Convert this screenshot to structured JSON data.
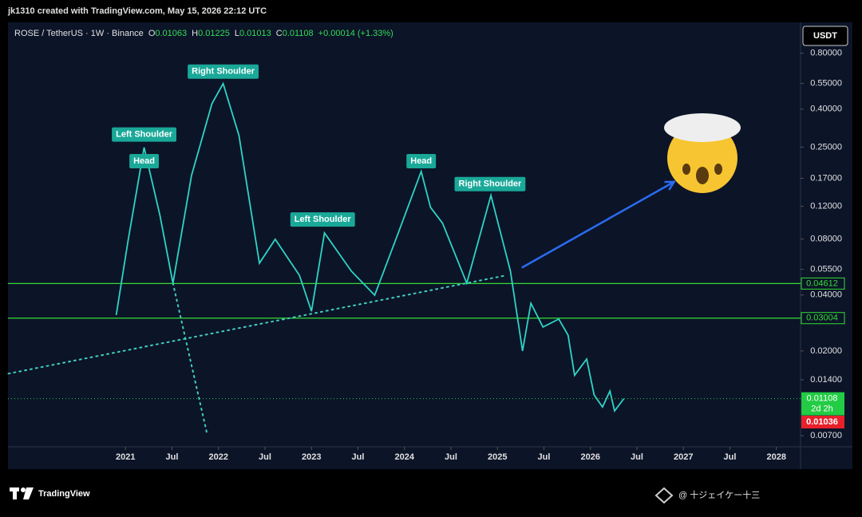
{
  "header": {
    "credit": "jk1310 created with TradingView.com, May 15, 2026 22:12 UTC"
  },
  "chart_data": {
    "type": "line",
    "symbol": "ROSE / TetherUS · 1W · Binance",
    "ohlc": [
      {
        "name": "O",
        "value": "0.01063"
      },
      {
        "name": "H",
        "value": "0.01225"
      },
      {
        "name": "L",
        "value": "0.01013"
      },
      {
        "name": "C",
        "value": "0.01108"
      }
    ],
    "change": "+0.00014 (+1.33%)",
    "currency": "USDT",
    "log_scale": true,
    "xlim": [
      2019.65,
      2028.26
    ],
    "ylim": [
      0.0061,
      1.15
    ],
    "xticks": [
      {
        "value": 2021,
        "label": "2021"
      },
      {
        "value": 2021.5,
        "label": "Jul"
      },
      {
        "value": 2022,
        "label": "2022"
      },
      {
        "value": 2022.5,
        "label": "Jul"
      },
      {
        "value": 2023,
        "label": "2023"
      },
      {
        "value": 2023.5,
        "label": "Jul"
      },
      {
        "value": 2024,
        "label": "2024"
      },
      {
        "value": 2024.5,
        "label": "Jul"
      },
      {
        "value": 2025,
        "label": "2025"
      },
      {
        "value": 2025.5,
        "label": "Jul"
      },
      {
        "value": 2026,
        "label": "2026"
      },
      {
        "value": 2026.5,
        "label": "Jul"
      },
      {
        "value": 2027,
        "label": "2027"
      },
      {
        "value": 2027.5,
        "label": "Jul"
      },
      {
        "value": 2028,
        "label": "2028"
      }
    ],
    "yticks": [
      {
        "value": 0.8,
        "label": "0.80000"
      },
      {
        "value": 0.55,
        "label": "0.55000"
      },
      {
        "value": 0.4,
        "label": "0.40000"
      },
      {
        "value": 0.25,
        "label": "0.25000"
      },
      {
        "value": 0.17,
        "label": "0.17000"
      },
      {
        "value": 0.12,
        "label": "0.12000"
      },
      {
        "value": 0.08,
        "label": "0.08000"
      },
      {
        "value": 0.055,
        "label": "0.05500"
      },
      {
        "value": 0.04,
        "label": "0.04000"
      },
      {
        "value": 0.02,
        "label": "0.02000"
      },
      {
        "value": 0.014,
        "label": "0.01400"
      },
      {
        "value": 0.007,
        "label": "0.00700"
      }
    ],
    "series": [
      {
        "color": "#2fd4c4",
        "x": [
          2020.9,
          2021.03,
          2021.2,
          2021.37,
          2021.51,
          2021.71,
          2021.93,
          2022.05,
          2022.22,
          2022.44,
          2022.61,
          2022.87,
          2023.0,
          2023.14,
          2023.43,
          2023.68,
          2023.94,
          2024.18,
          2024.28,
          2024.41,
          2024.67,
          2024.93,
          2025.14,
          2025.27,
          2025.36,
          2025.49,
          2025.66,
          2025.76,
          2025.83,
          2025.96,
          2026.04,
          2026.13,
          2026.21,
          2026.26,
          2026.36
        ],
        "values": [
          0.0312,
          0.0798,
          0.249,
          0.1074,
          0.0463,
          0.176,
          0.429,
          0.549,
          0.289,
          0.0593,
          0.0798,
          0.0511,
          0.0327,
          0.0863,
          0.0537,
          0.0399,
          0.0881,
          0.185,
          0.1186,
          0.0973,
          0.0463,
          0.1375,
          0.0537,
          0.02,
          0.0361,
          0.0269,
          0.0297,
          0.0243,
          0.0148,
          0.0181,
          0.0116,
          0.00998,
          0.01217,
          0.00951,
          0.01108
        ]
      }
    ],
    "levels": [
      {
        "value": 0.04612,
        "color": "#33dd33"
      },
      {
        "value": 0.03004,
        "color": "#33dd33"
      }
    ],
    "last_price": {
      "value": 0.01108,
      "countdown": "2d 2h",
      "color": "#22cc44"
    },
    "low_marker": {
      "value": 0.01036,
      "color": "#e8202a"
    },
    "trendlines": [
      {
        "x": [
          2019.74,
          2025.1
        ],
        "values": [
          0.0151,
          0.0511
        ],
        "color": "#3fcfc0",
        "dashed": true
      },
      {
        "x": [
          2021.51,
          2021.88
        ],
        "values": [
          0.0463,
          0.00706
        ],
        "color": "#3fcfc0",
        "dashed": true
      },
      {
        "x": [
          2025.27,
          2026.9
        ],
        "values": [
          0.0564,
          0.1626
        ],
        "color": "#2a6cf0",
        "dashed": false
      }
    ],
    "annotations": [
      {
        "text": "Left Shoulder",
        "x": 2021.2,
        "y": 0.292
      },
      {
        "text": "Head",
        "x": 2021.2,
        "y": 0.21
      },
      {
        "text": "Right Shoulder",
        "x": 2022.05,
        "y": 0.637
      },
      {
        "text": "Left Shoulder",
        "x": 2023.12,
        "y": 0.102
      },
      {
        "text": "Head",
        "x": 2024.18,
        "y": 0.21
      },
      {
        "text": "Right Shoulder",
        "x": 2024.92,
        "y": 0.158
      }
    ]
  },
  "footer": {
    "brand": "TradingView",
    "author": "@ 十ジェイケー十三"
  }
}
